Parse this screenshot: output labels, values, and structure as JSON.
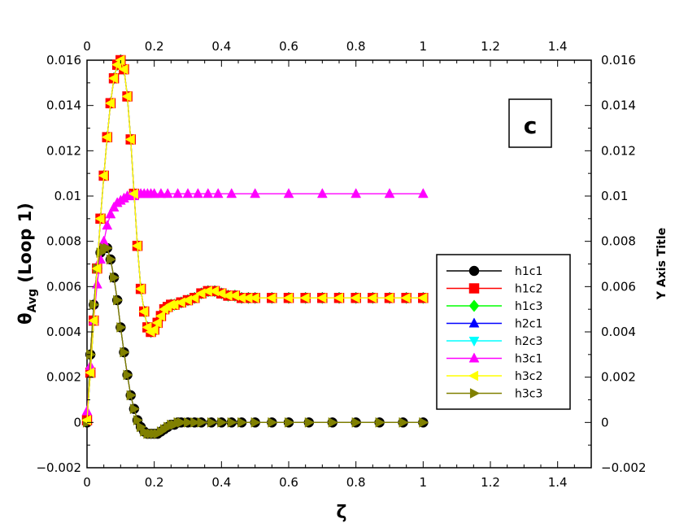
{
  "chart_data": {
    "type": "line",
    "panel_label": "c",
    "xlabel": "ζ",
    "ylabel_main": "θ",
    "ylabel_sub": "Avg",
    "ylabel_suffix": " (Loop 1)",
    "y2label": "Y Axis Title",
    "xlim": [
      0,
      1.5
    ],
    "ylim": [
      -0.002,
      0.016
    ],
    "x_ticks": [
      "0",
      "0.2",
      "0.4",
      "0.6",
      "0.8",
      "1",
      "1.2",
      "1.4"
    ],
    "x_tick_values": [
      0,
      0.2,
      0.4,
      0.6,
      0.8,
      1.0,
      1.2,
      1.4
    ],
    "y_ticks_left": [
      "−0.002",
      "0",
      "0.002",
      "0.004",
      "0.006",
      "0.008",
      "0.01",
      "0.012",
      "0.014",
      "0.016"
    ],
    "y_ticks_right": [
      "−0.002",
      "0",
      "0.002",
      "0.004",
      "0.006",
      "0.008",
      "0.01",
      "0.012",
      "0.014",
      "0.016"
    ],
    "y_tick_values": [
      -0.002,
      0,
      0.002,
      0.004,
      0.006,
      0.008,
      0.01,
      0.012,
      0.014,
      0.016
    ],
    "legend_position": "right-middle",
    "grid": false,
    "series": [
      {
        "name": "h1c1",
        "color": "#000000",
        "marker": "circle",
        "curve": "low"
      },
      {
        "name": "h1c2",
        "color": "#ff0000",
        "marker": "square",
        "curve": "high"
      },
      {
        "name": "h1c3",
        "color": "#00ff00",
        "marker": "diamond",
        "curve": "high"
      },
      {
        "name": "h2c1",
        "color": "#0000ff",
        "marker": "triangle-up",
        "curve": "high"
      },
      {
        "name": "h2c3",
        "color": "#00ffff",
        "marker": "triangle-down",
        "curve": "high"
      },
      {
        "name": "h3c1",
        "color": "#ff00ff",
        "marker": "triangle-up",
        "curve": "mid"
      },
      {
        "name": "h3c2",
        "color": "#ffff00",
        "marker": "triangle-left",
        "curve": "high"
      },
      {
        "name": "h3c3",
        "color": "#808000",
        "marker": "triangle-right",
        "curve": "low"
      }
    ],
    "curves": {
      "high": {
        "x": [
          0,
          0.01,
          0.02,
          0.03,
          0.04,
          0.05,
          0.06,
          0.07,
          0.08,
          0.09,
          0.1,
          0.11,
          0.12,
          0.13,
          0.14,
          0.15,
          0.16,
          0.17,
          0.18,
          0.19,
          0.2,
          0.21,
          0.22,
          0.23,
          0.24,
          0.25,
          0.26,
          0.28,
          0.3,
          0.32,
          0.34,
          0.36,
          0.38,
          0.4,
          0.42,
          0.44,
          0.46,
          0.48,
          0.5,
          0.55,
          0.6,
          0.65,
          0.7,
          0.75,
          0.8,
          0.85,
          0.9,
          0.95,
          1.0
        ],
        "y": [
          0.0001,
          0.0022,
          0.0045,
          0.0068,
          0.009,
          0.0109,
          0.0126,
          0.0141,
          0.0152,
          0.0158,
          0.016,
          0.0156,
          0.0144,
          0.0125,
          0.0101,
          0.0078,
          0.0059,
          0.0049,
          0.0042,
          0.004,
          0.0041,
          0.0044,
          0.0047,
          0.005,
          0.0051,
          0.0052,
          0.0052,
          0.0053,
          0.0054,
          0.0055,
          0.0057,
          0.0058,
          0.0058,
          0.0057,
          0.0056,
          0.0056,
          0.0055,
          0.0055,
          0.0055,
          0.0055,
          0.0055,
          0.0055,
          0.0055,
          0.0055,
          0.0055,
          0.0055,
          0.0055,
          0.0055,
          0.0055
        ]
      },
      "mid": {
        "x": [
          0,
          0.01,
          0.02,
          0.03,
          0.04,
          0.05,
          0.06,
          0.07,
          0.08,
          0.09,
          0.1,
          0.11,
          0.12,
          0.13,
          0.14,
          0.15,
          0.16,
          0.17,
          0.18,
          0.19,
          0.2,
          0.22,
          0.24,
          0.27,
          0.3,
          0.33,
          0.36,
          0.39,
          0.43,
          0.5,
          0.6,
          0.7,
          0.8,
          0.9,
          1.0
        ],
        "y": [
          0.0005,
          0.0025,
          0.0045,
          0.0061,
          0.0072,
          0.008,
          0.0087,
          0.0092,
          0.0095,
          0.0097,
          0.0098,
          0.0099,
          0.01,
          0.01,
          0.01,
          0.0101,
          0.0101,
          0.0101,
          0.0101,
          0.0101,
          0.0101,
          0.0101,
          0.0101,
          0.0101,
          0.0101,
          0.0101,
          0.0101,
          0.0101,
          0.0101,
          0.0101,
          0.0101,
          0.0101,
          0.0101,
          0.0101,
          0.0101
        ]
      },
      "low": {
        "x": [
          0,
          0.01,
          0.02,
          0.03,
          0.04,
          0.05,
          0.06,
          0.07,
          0.08,
          0.09,
          0.1,
          0.11,
          0.12,
          0.13,
          0.14,
          0.15,
          0.16,
          0.17,
          0.18,
          0.19,
          0.2,
          0.21,
          0.22,
          0.23,
          0.24,
          0.25,
          0.26,
          0.27,
          0.28,
          0.3,
          0.32,
          0.34,
          0.37,
          0.4,
          0.43,
          0.46,
          0.5,
          0.55,
          0.6,
          0.66,
          0.73,
          0.8,
          0.87,
          0.94,
          1.0
        ],
        "y": [
          0.0,
          0.003,
          0.0052,
          0.0068,
          0.0075,
          0.0077,
          0.0077,
          0.0072,
          0.0064,
          0.0054,
          0.0042,
          0.0031,
          0.0021,
          0.0012,
          0.0006,
          0.0001,
          -0.0002,
          -0.0004,
          -0.0005,
          -0.0005,
          -0.0005,
          -0.0005,
          -0.0004,
          -0.0003,
          -0.0002,
          -0.0001,
          -0.0001,
          0.0,
          0.0,
          0.0,
          0.0,
          0.0,
          0.0,
          0.0,
          0.0,
          0.0,
          0.0,
          0.0,
          0.0,
          0.0,
          0.0,
          0.0,
          0.0,
          0.0,
          0.0
        ]
      }
    }
  }
}
